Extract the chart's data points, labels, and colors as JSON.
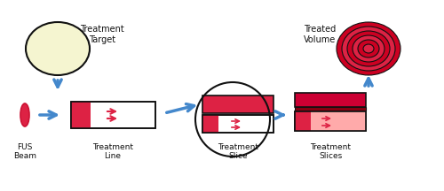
{
  "bg_color": "#ffffff",
  "arrow_color": "#4488cc",
  "red_color": "#dd2244",
  "dark_red": "#cc1133",
  "pink_color": "#ffaaaa",
  "light_yellow": "#f5f5d0",
  "black": "#111111",
  "text_color": "#111111",
  "labels": {
    "treatment_target": "Treatment\nTarget",
    "treated_volume": "Treated\nVolume",
    "fus_beam": "FUS\nBeam",
    "treatment_line": "Treatment\nLine",
    "treatment_slice": "Treatment\nSlice",
    "treatment_slices": "Treatment\nSlices"
  },
  "figsize": [
    5.0,
    2.16
  ],
  "dpi": 100
}
